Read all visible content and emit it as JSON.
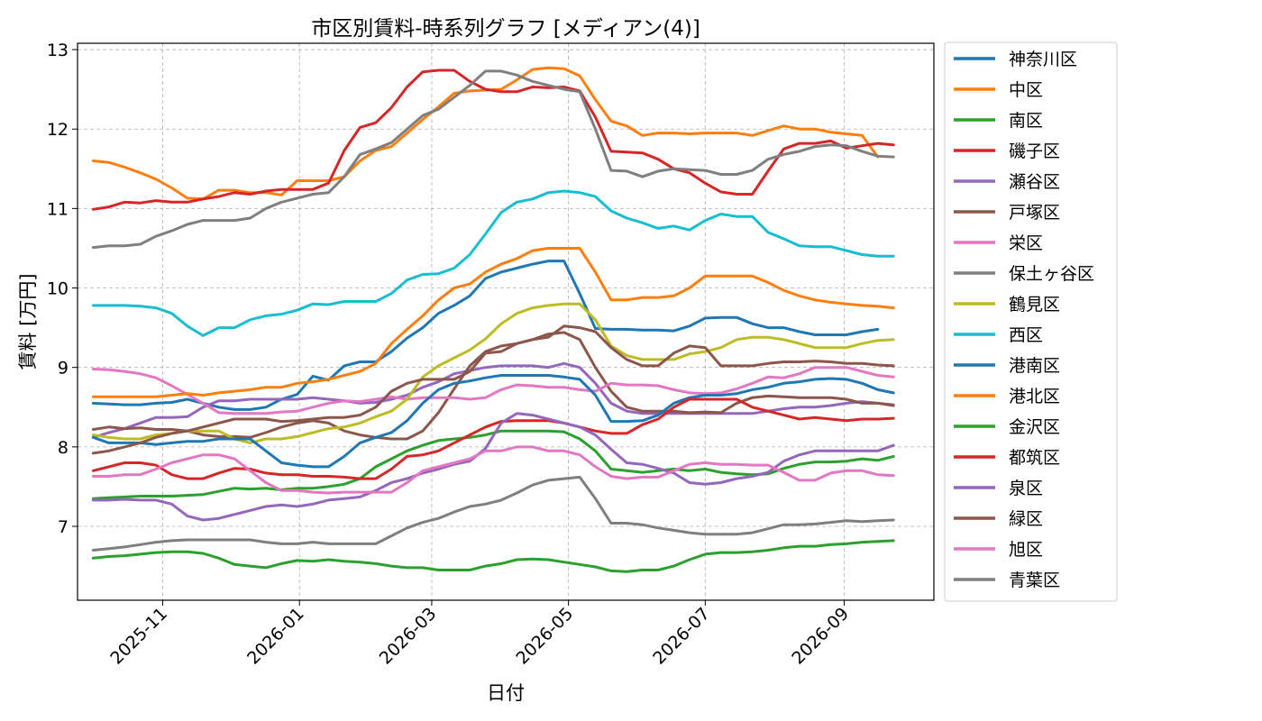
{
  "chart_data": {
    "type": "line",
    "title": "市区別賃料-時系列グラフ [メディアン(4)]",
    "xlabel": "日付",
    "ylabel": "賃料 [万円]",
    "x_start": "2025-10-01",
    "x_range": [
      "2025-09-24",
      "2026-10-11"
    ],
    "ylim": [
      6.07,
      13.08
    ],
    "x_ticks": [
      {
        "label": "2025-11",
        "date": "2025-11-01"
      },
      {
        "label": "2026-01",
        "date": "2026-01-01"
      },
      {
        "label": "2026-03",
        "date": "2026-03-01"
      },
      {
        "label": "2026-05",
        "date": "2026-05-01"
      },
      {
        "label": "2026-07",
        "date": "2026-07-01"
      },
      {
        "label": "2026-09",
        "date": "2026-09-01"
      }
    ],
    "y_ticks": [
      7,
      8,
      9,
      10,
      11,
      12,
      13
    ],
    "grid": true,
    "legend_position": "outside-right",
    "series": [
      {
        "name": "神奈川区",
        "color": "#1f77b4",
        "values": [
          8.55,
          8.54,
          8.53,
          8.53,
          8.55,
          8.56,
          8.6,
          8.55,
          8.5,
          8.47,
          8.47,
          8.5,
          8.6,
          8.66,
          8.89,
          8.84,
          9.02,
          9.07,
          9.07,
          9.2,
          9.37,
          9.5,
          9.68,
          9.78,
          9.9,
          10.12,
          10.2,
          10.25,
          10.3,
          10.34,
          10.34,
          9.93,
          9.49,
          9.48,
          9.48,
          9.47,
          9.47,
          9.46,
          9.52,
          9.62,
          9.63,
          9.63,
          9.55,
          9.5,
          9.5,
          9.45,
          9.41,
          9.41,
          9.41,
          9.45,
          9.48
        ]
      },
      {
        "name": "中区",
        "color": "#ff7f0e",
        "values": [
          11.6,
          11.58,
          11.52,
          11.45,
          11.37,
          11.26,
          11.13,
          11.12,
          11.23,
          11.23,
          11.2,
          11.2,
          11.17,
          11.35,
          11.35,
          11.35,
          11.4,
          11.6,
          11.73,
          11.78,
          11.95,
          12.12,
          12.28,
          12.45,
          12.48,
          12.49,
          12.5,
          12.62,
          12.75,
          12.77,
          12.76,
          12.67,
          12.37,
          12.1,
          12.04,
          11.92,
          11.95,
          11.95,
          11.94,
          11.95,
          11.95,
          11.95,
          11.92,
          11.98,
          12.04,
          12,
          12,
          11.96,
          11.94,
          11.92,
          11.65
        ]
      },
      {
        "name": "南区",
        "color": "#2ca02c",
        "values": [
          7.35,
          7.36,
          7.37,
          7.38,
          7.38,
          7.38,
          7.39,
          7.4,
          7.44,
          7.48,
          7.47,
          7.48,
          7.46,
          7.48,
          7.48,
          7.5,
          7.53,
          7.6,
          7.75,
          7.85,
          7.95,
          8.02,
          8.08,
          8.1,
          8.12,
          8.15,
          8.2,
          8.2,
          8.2,
          8.2,
          8.19,
          8.1,
          7.95,
          7.72,
          7.7,
          7.68,
          7.7,
          7.72,
          7.7,
          7.72,
          7.68,
          7.66,
          7.65,
          7.66,
          7.73,
          7.78,
          7.81,
          7.81,
          7.82,
          7.85,
          7.83,
          7.88
        ]
      },
      {
        "name": "磯子区",
        "color": "#d62728",
        "values": [
          10.99,
          11.02,
          11.08,
          11.07,
          11.1,
          11.08,
          11.08,
          11.12,
          11.15,
          11.2,
          11.18,
          11.22,
          11.24,
          11.24,
          11.24,
          11.32,
          11.73,
          12.02,
          12.08,
          12.27,
          12.53,
          12.72,
          12.74,
          12.74,
          12.6,
          12.5,
          12.47,
          12.47,
          12.53,
          12.52,
          12.53,
          12.48,
          12.15,
          11.72,
          11.71,
          11.7,
          11.62,
          11.5,
          11.45,
          11.32,
          11.21,
          11.18,
          11.18,
          11.47,
          11.75,
          11.82,
          11.82,
          11.85,
          11.76,
          11.79,
          11.82,
          11.8
        ]
      },
      {
        "name": "瀬谷区",
        "color": "#9467bd",
        "values": [
          8.12,
          8.18,
          8.23,
          8.3,
          8.37,
          8.37,
          8.38,
          8.5,
          8.58,
          8.58,
          8.6,
          8.6,
          8.6,
          8.6,
          8.62,
          8.6,
          8.58,
          8.55,
          8.56,
          8.6,
          8.65,
          8.75,
          8.82,
          8.92,
          8.96,
          9,
          9.02,
          9.02,
          9.02,
          9,
          9.05,
          9,
          8.8,
          8.55,
          8.45,
          8.42,
          8.42,
          8.42,
          8.42,
          8.42,
          8.42,
          8.42,
          8.42,
          8.45,
          8.48,
          8.5,
          8.5,
          8.52,
          8.55,
          8.57,
          8.55,
          8.53
        ]
      },
      {
        "name": "戸塚区",
        "color": "#8c564b",
        "values": [
          8.22,
          8.25,
          8.23,
          8.24,
          8.22,
          8.22,
          8.2,
          8.15,
          8.13,
          8.13,
          8.12,
          8.18,
          8.25,
          8.3,
          8.33,
          8.3,
          8.2,
          8.15,
          8.12,
          8.1,
          8.1,
          8.2,
          8.43,
          8.73,
          9.02,
          9.2,
          9.27,
          9.3,
          9.35,
          9.42,
          9.44,
          9.35,
          9.0,
          8.7,
          8.5,
          8.45,
          8.45,
          8.45,
          8.43,
          8.44,
          8.43,
          8.55,
          8.62,
          8.64,
          8.63,
          8.62,
          8.62,
          8.62,
          8.6,
          8.55,
          8.55,
          8.52
        ]
      },
      {
        "name": "栄区",
        "color": "#e377c2",
        "values": [
          8.98,
          8.97,
          8.95,
          8.92,
          8.87,
          8.77,
          8.66,
          8.55,
          8.43,
          8.42,
          8.42,
          8.42,
          8.44,
          8.45,
          8.5,
          8.55,
          8.58,
          8.57,
          8.6,
          8.63,
          8.6,
          8.62,
          8.62,
          8.62,
          8.6,
          8.62,
          8.72,
          8.78,
          8.77,
          8.75,
          8.75,
          8.72,
          8.7,
          8.8,
          8.78,
          8.78,
          8.77,
          8.72,
          8.68,
          8.67,
          8.68,
          8.73,
          8.8,
          8.88,
          8.87,
          8.92,
          9,
          9,
          9,
          8.95,
          8.9,
          8.88
        ]
      },
      {
        "name": "保土ヶ谷区",
        "color": "#7f7f7f",
        "values": [
          10.51,
          10.53,
          10.53,
          10.55,
          10.65,
          10.72,
          10.8,
          10.85,
          10.85,
          10.85,
          10.88,
          11,
          11.08,
          11.13,
          11.18,
          11.2,
          11.4,
          11.68,
          11.75,
          11.83,
          12.0,
          12.17,
          12.25,
          12.4,
          12.55,
          12.73,
          12.73,
          12.68,
          12.6,
          12.55,
          12.5,
          12.47,
          12.0,
          11.48,
          11.47,
          11.4,
          11.47,
          11.5,
          11.49,
          11.48,
          11.43,
          11.43,
          11.48,
          11.62,
          11.68,
          11.72,
          11.78,
          11.8,
          11.79,
          11.72,
          11.66,
          11.65
        ]
      },
      {
        "name": "鶴見区",
        "color": "#bcbd22",
        "values": [
          8.15,
          8.12,
          8.1,
          8.1,
          8.15,
          8.17,
          8.2,
          8.2,
          8.2,
          8.1,
          8.05,
          8.1,
          8.1,
          8.13,
          8.18,
          8.23,
          8.25,
          8.3,
          8.38,
          8.45,
          8.6,
          8.88,
          9.02,
          9.12,
          9.22,
          9.36,
          9.55,
          9.68,
          9.75,
          9.78,
          9.8,
          9.8,
          9.6,
          9.27,
          9.15,
          9.1,
          9.1,
          9.1,
          9.17,
          9.2,
          9.25,
          9.35,
          9.38,
          9.38,
          9.35,
          9.3,
          9.25,
          9.25,
          9.25,
          9.3,
          9.34,
          9.35
        ]
      },
      {
        "name": "西区",
        "color": "#17becf",
        "values": [
          9.78,
          9.78,
          9.78,
          9.77,
          9.75,
          9.68,
          9.52,
          9.4,
          9.5,
          9.5,
          9.6,
          9.65,
          9.67,
          9.72,
          9.8,
          9.79,
          9.83,
          9.83,
          9.83,
          9.93,
          10.1,
          10.17,
          10.18,
          10.25,
          10.42,
          10.68,
          10.95,
          11.08,
          11.12,
          11.2,
          11.22,
          11.2,
          11.15,
          10.97,
          10.88,
          10.82,
          10.75,
          10.78,
          10.73,
          10.85,
          10.93,
          10.9,
          10.9,
          10.7,
          10.62,
          10.53,
          10.52,
          10.52,
          10.47,
          10.42,
          10.4,
          10.4
        ]
      },
      {
        "name": "港南区",
        "color": "#1f77b4",
        "values": [
          8.12,
          8.05,
          8.05,
          8.05,
          8.03,
          8.05,
          8.07,
          8.07,
          8.1,
          8.1,
          8.1,
          7.95,
          7.8,
          7.77,
          7.75,
          7.75,
          7.88,
          8.05,
          8.12,
          8.18,
          8.33,
          8.55,
          8.72,
          8.8,
          8.83,
          8.87,
          8.9,
          8.9,
          8.9,
          8.9,
          8.88,
          8.85,
          8.65,
          8.32,
          8.32,
          8.33,
          8.4,
          8.55,
          8.62,
          8.65,
          8.65,
          8.67,
          8.72,
          8.75,
          8.8,
          8.82,
          8.85,
          8.86,
          8.85,
          8.8,
          8.72,
          8.68
        ]
      },
      {
        "name": "港北区",
        "color": "#ff7f0e",
        "values": [
          8.63,
          8.63,
          8.63,
          8.63,
          8.63,
          8.65,
          8.67,
          8.65,
          8.68,
          8.7,
          8.72,
          8.75,
          8.75,
          8.8,
          8.82,
          8.85,
          8.9,
          8.95,
          9.05,
          9.3,
          9.48,
          9.65,
          9.85,
          10.0,
          10.05,
          10.2,
          10.3,
          10.37,
          10.47,
          10.5,
          10.5,
          10.5,
          10.2,
          9.85,
          9.85,
          9.88,
          9.88,
          9.9,
          10.0,
          10.15,
          10.15,
          10.15,
          10.15,
          10.07,
          9.97,
          9.9,
          9.85,
          9.82,
          9.8,
          9.78,
          9.77,
          9.75
        ]
      },
      {
        "name": "金沢区",
        "color": "#2ca02c",
        "values": [
          6.6,
          6.62,
          6.63,
          6.65,
          6.67,
          6.68,
          6.68,
          6.66,
          6.6,
          6.52,
          6.5,
          6.48,
          6.53,
          6.57,
          6.56,
          6.58,
          6.56,
          6.55,
          6.53,
          6.5,
          6.48,
          6.48,
          6.45,
          6.45,
          6.45,
          6.5,
          6.53,
          6.58,
          6.59,
          6.58,
          6.55,
          6.52,
          6.49,
          6.44,
          6.43,
          6.45,
          6.45,
          6.5,
          6.58,
          6.65,
          6.67,
          6.67,
          6.68,
          6.7,
          6.73,
          6.75,
          6.75,
          6.77,
          6.78,
          6.8,
          6.81,
          6.82
        ]
      },
      {
        "name": "都筑区",
        "color": "#d62728",
        "values": [
          7.7,
          7.75,
          7.8,
          7.8,
          7.77,
          7.65,
          7.6,
          7.6,
          7.67,
          7.73,
          7.72,
          7.67,
          7.65,
          7.65,
          7.63,
          7.63,
          7.62,
          7.6,
          7.6,
          7.72,
          7.88,
          7.9,
          7.95,
          8.05,
          8.15,
          8.25,
          8.32,
          8.33,
          8.33,
          8.33,
          8.3,
          8.25,
          8.2,
          8.17,
          8.17,
          8.28,
          8.35,
          8.5,
          8.6,
          8.6,
          8.6,
          8.6,
          8.5,
          8.45,
          8.4,
          8.35,
          8.37,
          8.35,
          8.33,
          8.35,
          8.35,
          8.36
        ]
      },
      {
        "name": "泉区",
        "color": "#9467bd",
        "values": [
          7.33,
          7.33,
          7.34,
          7.33,
          7.33,
          7.28,
          7.13,
          7.08,
          7.1,
          7.15,
          7.2,
          7.25,
          7.27,
          7.25,
          7.28,
          7.33,
          7.35,
          7.37,
          7.45,
          7.55,
          7.6,
          7.67,
          7.72,
          7.78,
          7.82,
          7.98,
          8.3,
          8.42,
          8.4,
          8.35,
          8.3,
          8.25,
          8.15,
          7.97,
          7.8,
          7.78,
          7.73,
          7.67,
          7.55,
          7.53,
          7.55,
          7.6,
          7.63,
          7.68,
          7.82,
          7.9,
          7.95,
          7.95,
          7.95,
          7.95,
          7.95,
          8.02
        ]
      },
      {
        "name": "緑区",
        "color": "#8c564b",
        "values": [
          7.92,
          7.95,
          8.0,
          8.05,
          8.12,
          8.17,
          8.2,
          8.25,
          8.3,
          8.35,
          8.35,
          8.35,
          8.32,
          8.33,
          8.35,
          8.37,
          8.37,
          8.4,
          8.5,
          8.7,
          8.8,
          8.85,
          8.85,
          8.85,
          8.95,
          9.18,
          9.2,
          9.3,
          9.35,
          9.38,
          9.52,
          9.5,
          9.45,
          9.25,
          9.1,
          9.02,
          9.02,
          9.18,
          9.27,
          9.25,
          9.02,
          9.02,
          9.02,
          9.05,
          9.07,
          9.07,
          9.08,
          9.07,
          9.05,
          9.05,
          9.03,
          9.02
        ]
      },
      {
        "name": "旭区",
        "color": "#e377c2",
        "values": [
          7.63,
          7.63,
          7.65,
          7.65,
          7.72,
          7.8,
          7.85,
          7.9,
          7.9,
          7.85,
          7.7,
          7.55,
          7.45,
          7.45,
          7.43,
          7.42,
          7.43,
          7.43,
          7.43,
          7.43,
          7.55,
          7.7,
          7.75,
          7.8,
          7.85,
          7.95,
          7.95,
          8.0,
          8.0,
          7.95,
          7.95,
          7.9,
          7.75,
          7.63,
          7.6,
          7.62,
          7.62,
          7.7,
          7.78,
          7.8,
          7.78,
          7.78,
          7.77,
          7.77,
          7.68,
          7.58,
          7.58,
          7.67,
          7.7,
          7.7,
          7.65,
          7.64
        ]
      },
      {
        "name": "青葉区",
        "color": "#7f7f7f",
        "values": [
          6.7,
          6.72,
          6.74,
          6.77,
          6.8,
          6.82,
          6.83,
          6.83,
          6.83,
          6.83,
          6.83,
          6.8,
          6.78,
          6.78,
          6.8,
          6.78,
          6.78,
          6.78,
          6.78,
          6.88,
          6.98,
          7.05,
          7.1,
          7.18,
          7.25,
          7.28,
          7.33,
          7.42,
          7.52,
          7.58,
          7.6,
          7.62,
          7.35,
          7.04,
          7.04,
          7.02,
          6.98,
          6.95,
          6.92,
          6.9,
          6.9,
          6.9,
          6.92,
          6.97,
          7.02,
          7.02,
          7.03,
          7.05,
          7.07,
          7.06,
          7.07,
          7.08
        ]
      }
    ]
  }
}
